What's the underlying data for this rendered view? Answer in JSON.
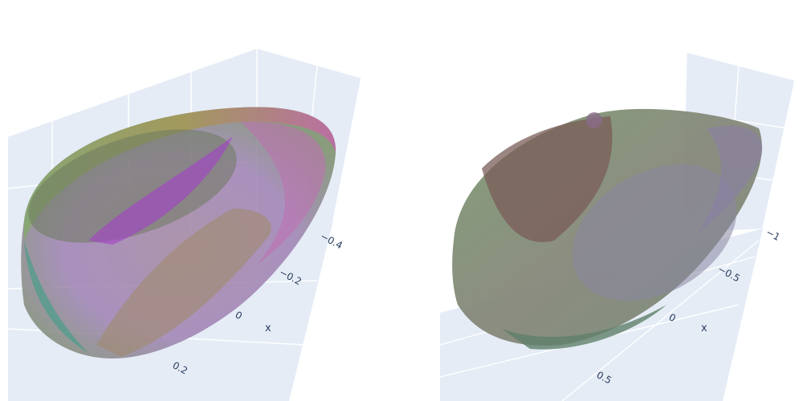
{
  "chart_data": [
    {
      "type": "mesh3d",
      "panel": "left",
      "axes": {
        "x": {
          "title": "x",
          "tick_labels": [
            "−0.4",
            "−0.2",
            "0",
            "0.2"
          ],
          "tick_values": [
            -0.4,
            -0.2,
            0,
            0.2
          ]
        }
      },
      "grid": true,
      "scene_background": "#e5ecf6",
      "surface": "semi-transparent multicolored closed shell (green, yellow, purple, pink hues)"
    },
    {
      "type": "mesh3d",
      "panel": "right",
      "axes": {
        "x": {
          "title": "x",
          "tick_labels": [
            "−1",
            "−0.5",
            "0",
            "0.5"
          ],
          "tick_values": [
            -1,
            -0.5,
            0,
            0.5
          ]
        }
      },
      "grid": true,
      "scene_background": "#e5ecf6",
      "surface": "semi-transparent multicolored closed shell (green, brown, purple hues)"
    }
  ],
  "colors": {
    "scene_background": "#e5ecf6",
    "grid": "#ffffff",
    "tick_text": "#2a3f5f"
  }
}
